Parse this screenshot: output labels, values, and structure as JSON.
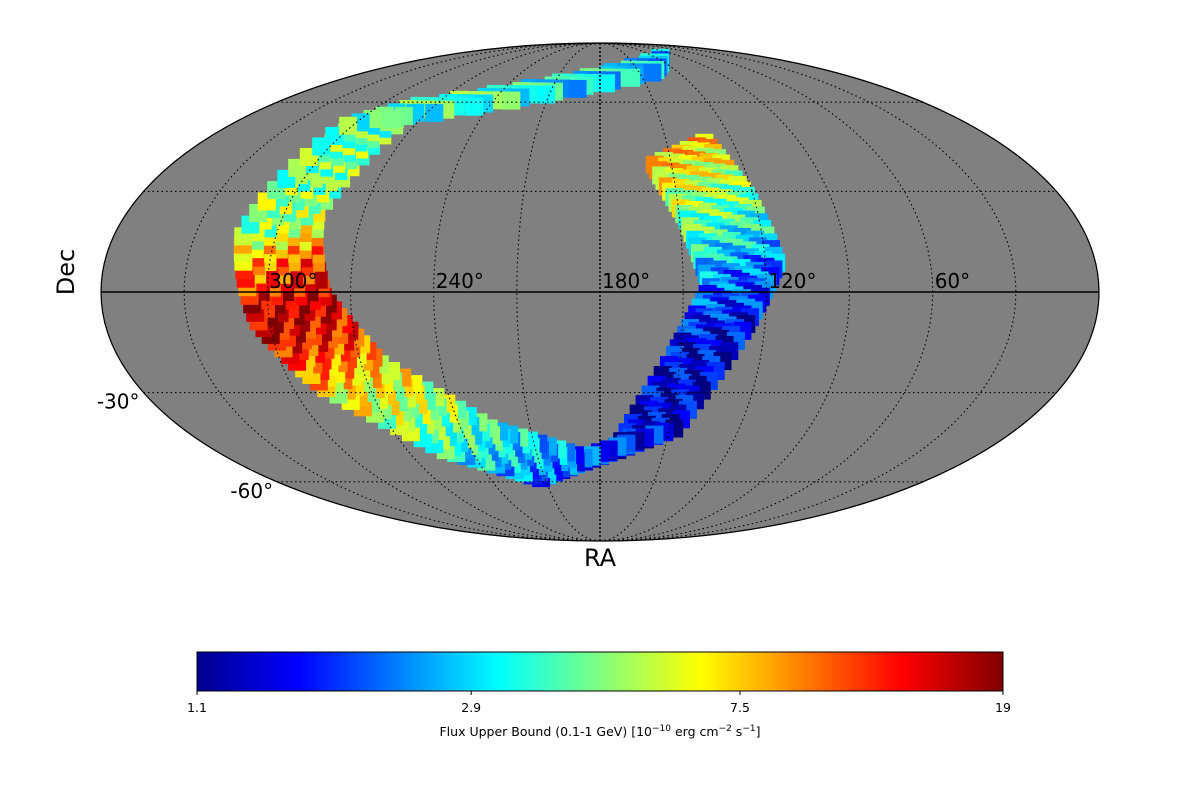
{
  "chart_data": {
    "type": "heatmap",
    "projection": "mollweide",
    "xlabel": "RA",
    "ylabel": "Dec",
    "ra_tick_values": [
      300,
      240,
      180,
      120,
      60
    ],
    "ra_tick_labels": [
      "300°",
      "240°",
      "180°",
      "120°",
      "60°"
    ],
    "dec_tick_values": [
      -30,
      -60
    ],
    "dec_tick_labels": [
      "-30°",
      "-60°"
    ],
    "grid": true,
    "background_color": "#808080",
    "colorbar": {
      "label_main": "Flux Upper Bound (0.1-1 GeV) [10",
      "label_exp1": "−10",
      "label_mid": " erg cm",
      "label_exp2": "−2",
      "label_mid2": " s",
      "label_exp3": "−1",
      "label_end": "]",
      "tick_values": [
        1.1,
        2.9,
        7.5,
        19
      ],
      "tick_labels": [
        "1.1",
        "2.9",
        "7.5",
        "19"
      ],
      "scale": "log",
      "range": [
        1.1,
        19
      ],
      "colormap": "jet",
      "placement": "bottom"
    },
    "coverage": [
      {
        "ra": 145,
        "dec": 42,
        "value": 7.5
      },
      {
        "ra": 135,
        "dec": 25,
        "value": 4.5
      },
      {
        "ra": 128,
        "dec": 5,
        "value": 2.2
      },
      {
        "ra": 140,
        "dec": -15,
        "value": 1.5
      },
      {
        "ra": 160,
        "dec": -45,
        "value": 1.4
      },
      {
        "ra": 200,
        "dec": -55,
        "value": 2.0
      },
      {
        "ra": 240,
        "dec": -45,
        "value": 3.5
      },
      {
        "ra": 275,
        "dec": -25,
        "value": 7.0
      },
      {
        "ra": 292,
        "dec": -5,
        "value": 16.0
      },
      {
        "ra": 300,
        "dec": 20,
        "value": 5.0
      },
      {
        "ra": 290,
        "dec": 55,
        "value": 4.0
      },
      {
        "ra": 110,
        "dec": 78,
        "value": 2.5
      }
    ]
  }
}
